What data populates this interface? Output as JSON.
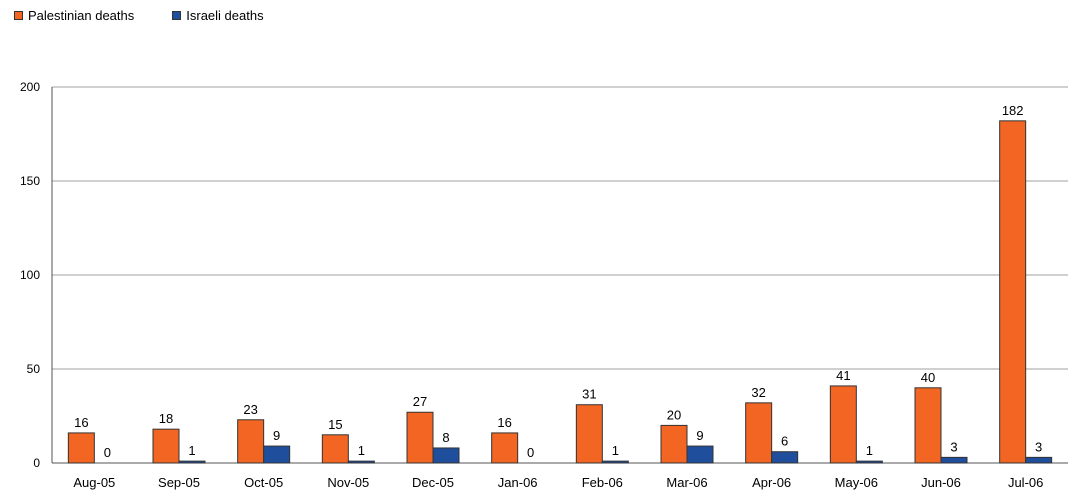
{
  "chart_data": {
    "type": "bar",
    "categories": [
      "Aug-05",
      "Sep-05",
      "Oct-05",
      "Nov-05",
      "Dec-05",
      "Jan-06",
      "Feb-06",
      "Mar-06",
      "Apr-06",
      "May-06",
      "Jun-06",
      "Jul-06"
    ],
    "series": [
      {
        "name": "Palestinian deaths",
        "color": "#f26522",
        "values": [
          16,
          18,
          23,
          15,
          27,
          16,
          31,
          20,
          32,
          41,
          40,
          182
        ]
      },
      {
        "name": "Israeli deaths",
        "color": "#1f4e9c",
        "values": [
          0,
          1,
          9,
          1,
          8,
          0,
          1,
          9,
          6,
          1,
          3,
          3
        ]
      }
    ],
    "yticks": [
      "0",
      "50",
      "100",
      "150",
      "200"
    ],
    "ylim": [
      0,
      200
    ],
    "grid": true,
    "legend_position": "top-left",
    "data_labels": true,
    "title": "",
    "xlabel": "",
    "ylabel": ""
  }
}
